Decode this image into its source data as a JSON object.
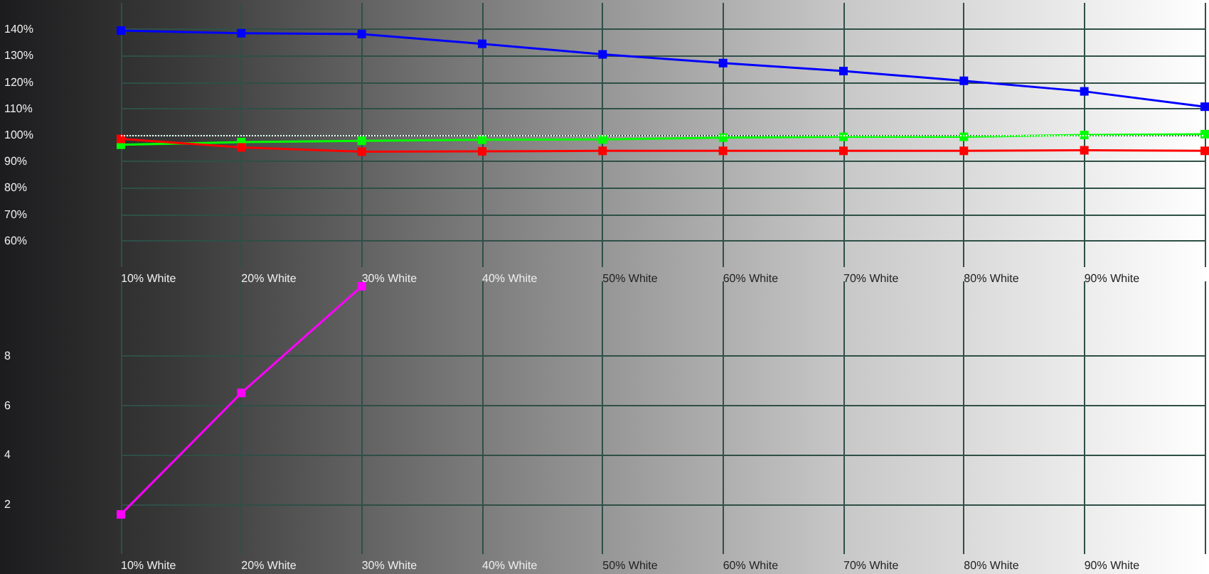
{
  "chart_data": [
    {
      "type": "line",
      "categories": [
        "10% White",
        "20% White",
        "30% White",
        "40% White",
        "50% White",
        "60% White",
        "70% White",
        "80% White",
        "90% White",
        null
      ],
      "series": [
        {
          "color": "#0000ff",
          "values": [
            139.5,
            138.5,
            138.2,
            134.5,
            130.5,
            127.2,
            124.2,
            120.5,
            116.5,
            110.7
          ]
        },
        {
          "color": "#00ff00",
          "values": [
            96.3,
            97.3,
            97.8,
            98.2,
            98.3,
            99,
            99.3,
            99.3,
            100,
            100.3
          ]
        },
        {
          "color": "#ff0000",
          "values": [
            98.5,
            95.3,
            93.7,
            93.8,
            94,
            94,
            94,
            94,
            94.2,
            94
          ]
        }
      ],
      "ylim": [
        50,
        150
      ],
      "yticks": [
        {
          "value": 60,
          "label": "60%"
        },
        {
          "value": 70,
          "label": "70%"
        },
        {
          "value": 80,
          "label": "80%"
        },
        {
          "value": 90,
          "label": "90%"
        },
        {
          "value": 100,
          "label": "100%"
        },
        {
          "value": 110,
          "label": "110%"
        },
        {
          "value": 120,
          "label": "120%"
        },
        {
          "value": 130,
          "label": "130%"
        },
        {
          "value": 140,
          "label": "140%"
        }
      ],
      "ref_lines": [
        {
          "axis": "y",
          "value": 100,
          "color": "#ffffff",
          "line_style": "dotted"
        }
      ],
      "grid": true,
      "marker": "square",
      "line_style": "solid"
    },
    {
      "type": "line",
      "categories": [
        "10% White",
        "20% White",
        "30% White",
        "40% White",
        "50% White",
        "60% White",
        "70% White",
        "80% White",
        "90% White",
        null
      ],
      "series": [
        {
          "color": "#ff00ff",
          "values": [
            1.6,
            6.5,
            10.8,
            null,
            null,
            null,
            null,
            null,
            null,
            null
          ]
        }
      ],
      "ylim": [
        0,
        11
      ],
      "yticks": [
        2,
        4,
        6,
        8
      ],
      "grid": true,
      "marker": "square",
      "line_style": "solid"
    }
  ]
}
